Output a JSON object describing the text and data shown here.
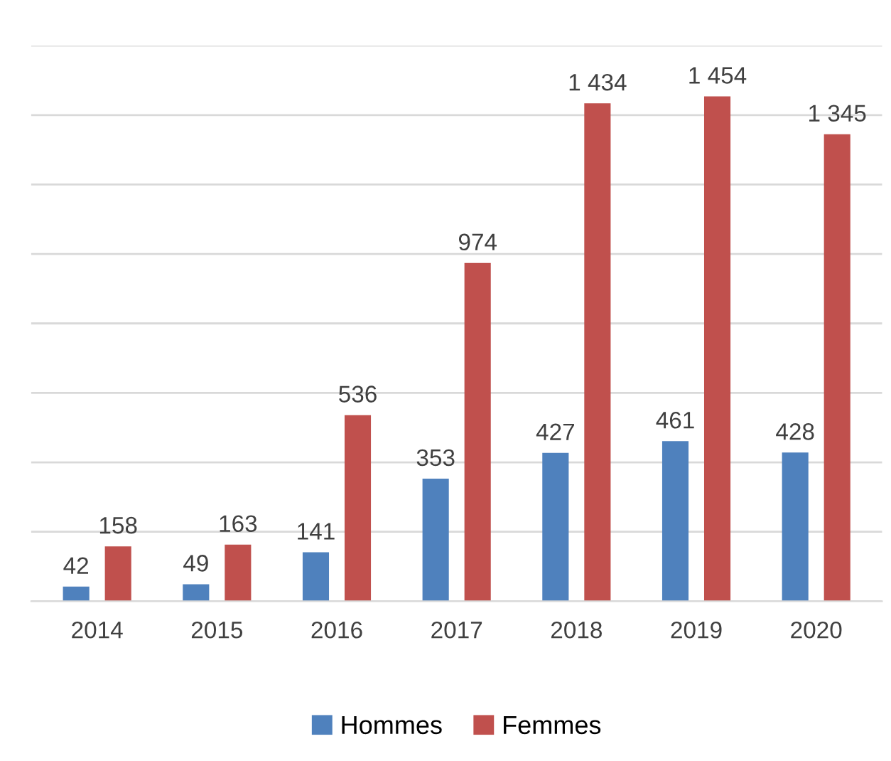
{
  "chart_data": {
    "type": "bar",
    "categories": [
      "2014",
      "2015",
      "2016",
      "2017",
      "2018",
      "2019",
      "2020"
    ],
    "series": [
      {
        "name": "Hommes",
        "color": "#4f81bd",
        "values": [
          42,
          49,
          141,
          353,
          427,
          461,
          428
        ],
        "value_labels": [
          "42",
          "49",
          "141",
          "353",
          "427",
          "461",
          "428"
        ]
      },
      {
        "name": "Femmes",
        "color": "#c0504d",
        "values": [
          158,
          163,
          536,
          974,
          1434,
          1454,
          1345
        ],
        "value_labels": [
          "158",
          "163",
          "536",
          "974",
          "1 434",
          "1 454",
          "1 345"
        ]
      }
    ],
    "ylim": [
      0,
      1600
    ],
    "yticks": [
      {
        "value": 0,
        "label": null
      },
      {
        "value": 200,
        "label": null
      },
      {
        "value": 400,
        "label": null
      },
      {
        "value": 600,
        "label": null
      },
      {
        "value": 800,
        "label": null
      },
      {
        "value": 1000,
        "label": null
      },
      {
        "value": 1200,
        "label": null
      },
      {
        "value": 1400,
        "label": null
      },
      {
        "value": 1600,
        "label": null
      }
    ],
    "tick_labels": "x",
    "grid": "y",
    "legend": "bottom"
  }
}
